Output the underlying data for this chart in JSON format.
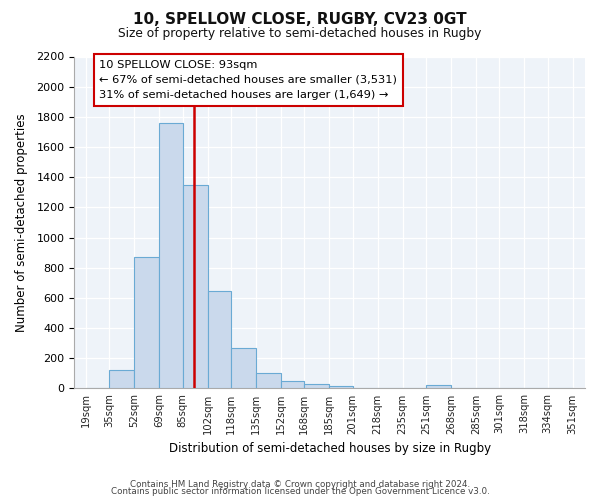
{
  "title": "10, SPELLOW CLOSE, RUGBY, CV23 0GT",
  "subtitle": "Size of property relative to semi-detached houses in Rugby",
  "xlabel": "Distribution of semi-detached houses by size in Rugby",
  "ylabel": "Number of semi-detached properties",
  "bar_values": [
    5,
    120,
    870,
    1760,
    1350,
    645,
    270,
    100,
    50,
    30,
    15,
    5,
    0,
    0,
    20,
    0,
    0,
    0,
    0,
    0
  ],
  "bin_labels": [
    "19sqm",
    "35sqm",
    "52sqm",
    "69sqm",
    "85sqm",
    "102sqm",
    "118sqm",
    "135sqm",
    "152sqm",
    "168sqm",
    "185sqm",
    "201sqm",
    "218sqm",
    "235sqm",
    "251sqm",
    "268sqm",
    "285sqm",
    "301sqm",
    "318sqm",
    "334sqm",
    "351sqm"
  ],
  "bar_color": "#cad9ec",
  "bar_edge_color": "#6aaad4",
  "vline_color": "#cc0000",
  "vline_pos": 93,
  "annotation_title": "10 SPELLOW CLOSE: 93sqm",
  "annotation_line1": "← 67% of semi-detached houses are smaller (3,531)",
  "annotation_line2": "31% of semi-detached houses are larger (1,649) →",
  "annotation_box_facecolor": "#ffffff",
  "annotation_box_edgecolor": "#cc0000",
  "ylim": [
    0,
    2200
  ],
  "yticks": [
    0,
    200,
    400,
    600,
    800,
    1000,
    1200,
    1400,
    1600,
    1800,
    2000,
    2200
  ],
  "footer1": "Contains HM Land Registry data © Crown copyright and database right 2024.",
  "footer2": "Contains public sector information licensed under the Open Government Licence v3.0.",
  "bins": [
    19,
    35,
    52,
    69,
    85,
    102,
    118,
    135,
    152,
    168,
    185,
    201,
    218,
    235,
    251,
    268,
    285,
    301,
    318,
    334,
    351
  ]
}
